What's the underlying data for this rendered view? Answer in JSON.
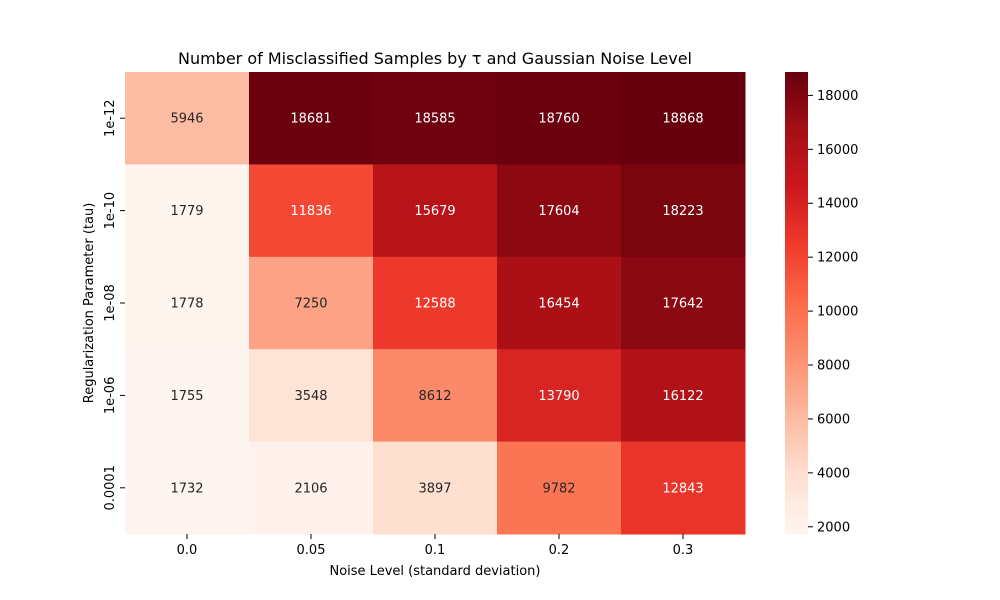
{
  "chart_data": {
    "type": "heatmap",
    "title": "Number of Misclassified Samples by τ and Gaussian Noise Level",
    "xlabel": "Noise Level (standard deviation)",
    "ylabel": "Regularization Parameter (tau)",
    "x_categories": [
      "0.0",
      "0.05",
      "0.1",
      "0.2",
      "0.3"
    ],
    "y_categories": [
      "1e-12",
      "1e-10",
      "1e-08",
      "1e-06",
      "0.0001"
    ],
    "values": [
      [
        5946,
        18681,
        18585,
        18760,
        18868
      ],
      [
        1779,
        11836,
        15679,
        17604,
        18223
      ],
      [
        1778,
        7250,
        12588,
        16454,
        17642
      ],
      [
        1755,
        3548,
        8612,
        13790,
        16122
      ],
      [
        1732,
        2106,
        3897,
        9782,
        12843
      ]
    ],
    "colormap": "Reds",
    "value_range": [
      1732,
      18868
    ],
    "colorbar_ticks": [
      2000,
      4000,
      6000,
      8000,
      10000,
      12000,
      14000,
      16000,
      18000
    ],
    "colorbar_tick_labels": [
      "2000",
      "4000",
      "6000",
      "8000",
      "10000",
      "12000",
      "14000",
      "16000",
      "18000"
    ],
    "colors": {
      "colormap_stops": [
        "#fff5f0",
        "#fee0d2",
        "#fcbba1",
        "#fc9272",
        "#fb6a4a",
        "#ef3b2c",
        "#cb181d",
        "#a50f15",
        "#67000d"
      ],
      "text_dark": "#262626",
      "text_light": "#ffffff"
    }
  }
}
